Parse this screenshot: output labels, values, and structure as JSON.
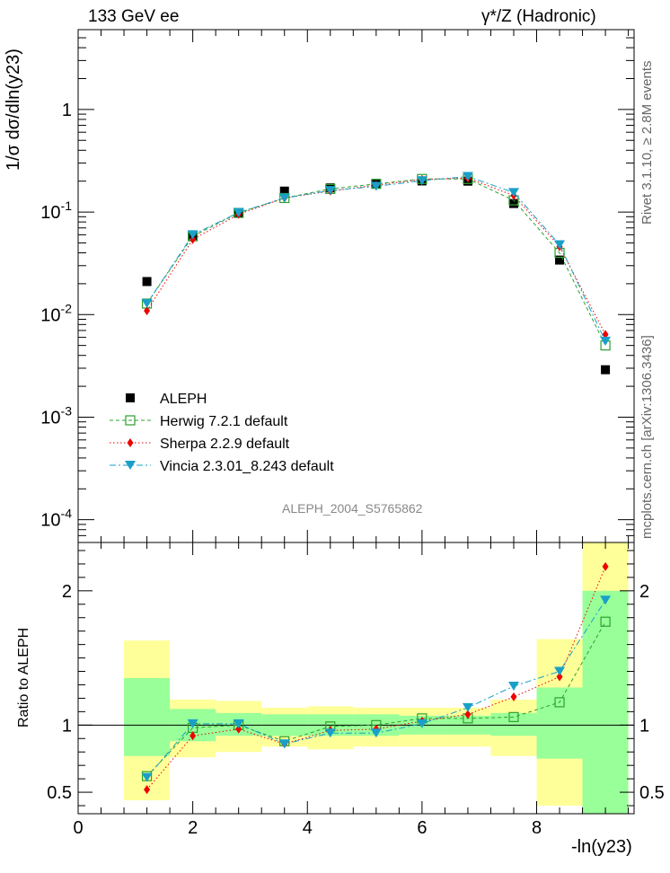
{
  "header": {
    "left": "133 GeV ee",
    "right": "γ*/Z (Hadronic)"
  },
  "side_text": {
    "top": "Rivet 3.1.10, ≥ 2.8M events",
    "bottom": "mcplots.cern.ch [arXiv:1306.3436]"
  },
  "analysis_label": "ALEPH_2004_S5765862",
  "colors": {
    "data": "#000000",
    "herwig": "#2ca02c",
    "sherpa": "#ee0000",
    "vincia": "#1a9fc9",
    "band_outer": "#ffff99",
    "band_inner": "#99ff99"
  },
  "chart_data": [
    {
      "type": "scatter",
      "panel": "main",
      "ylabel": "1/σ  dσ/dln(y23)",
      "yscale": "log",
      "ylim": [
        6e-05,
        6
      ],
      "xlim": [
        0,
        9.7
      ],
      "yticks": [
        {
          "v": 1,
          "label": "1"
        },
        {
          "v": 0.1,
          "label": "10-1"
        },
        {
          "v": 0.01,
          "label": "10-2"
        },
        {
          "v": 0.001,
          "label": "10-3"
        },
        {
          "v": 0.0001,
          "label": "10-4"
        }
      ],
      "bin_edges": [
        0.8,
        1.6,
        2.4,
        3.2,
        4.0,
        4.8,
        5.6,
        6.4,
        7.2,
        8.0,
        8.8,
        9.6
      ],
      "x": [
        1.2,
        2.0,
        2.8,
        3.6,
        4.4,
        5.2,
        6.0,
        6.8,
        7.6,
        8.4,
        9.2
      ],
      "series": [
        {
          "name": "ALEPH",
          "values": [
            0.021,
            0.059,
            0.098,
            0.16,
            0.172,
            0.19,
            0.201,
            0.2,
            0.121,
            0.034,
            0.0029
          ]
        },
        {
          "name": "Herwig 7.2.1 default",
          "values": [
            0.0128,
            0.058,
            0.098,
            0.137,
            0.168,
            0.188,
            0.21,
            0.21,
            0.13,
            0.04,
            0.005
          ]
        },
        {
          "name": "Sherpa 2.2.9 default",
          "values": [
            0.0109,
            0.054,
            0.095,
            0.137,
            0.16,
            0.183,
            0.208,
            0.214,
            0.145,
            0.046,
            0.0064
          ]
        },
        {
          "name": "Vincia 2.3.01_8.243 default",
          "values": [
            0.0128,
            0.06,
            0.099,
            0.137,
            0.162,
            0.178,
            0.202,
            0.222,
            0.155,
            0.048,
            0.0055
          ]
        }
      ]
    },
    {
      "type": "scatter",
      "panel": "ratio",
      "ylabel": "Ratio to ALEPH",
      "xlabel": "-ln(y23)",
      "ylim": [
        0.34,
        2.36
      ],
      "xlim": [
        0,
        9.7
      ],
      "yticks": [
        {
          "v": 0.5,
          "label": "0.5"
        },
        {
          "v": 1,
          "label": "1"
        },
        {
          "v": 2,
          "label": "2"
        }
      ],
      "xticks": [
        {
          "v": 0,
          "label": "0"
        },
        {
          "v": 2,
          "label": "2"
        },
        {
          "v": 4,
          "label": "4"
        },
        {
          "v": 6,
          "label": "6"
        },
        {
          "v": 8,
          "label": "8"
        }
      ],
      "band_outer": [
        [
          0.44,
          1.63
        ],
        [
          0.76,
          1.19
        ],
        [
          0.8,
          1.18
        ],
        [
          0.84,
          1.13
        ],
        [
          0.82,
          1.14
        ],
        [
          0.84,
          1.13
        ],
        [
          0.84,
          1.13
        ],
        [
          0.84,
          1.13
        ],
        [
          0.77,
          1.19
        ],
        [
          0.4,
          1.64
        ],
        [
          0.34,
          2.36
        ]
      ],
      "band_inner": [
        [
          0.77,
          1.35
        ],
        [
          0.88,
          1.12
        ],
        [
          0.92,
          1.09
        ],
        [
          0.92,
          1.08
        ],
        [
          0.92,
          1.08
        ],
        [
          0.92,
          1.08
        ],
        [
          0.93,
          1.07
        ],
        [
          0.93,
          1.07
        ],
        [
          0.92,
          1.09
        ],
        [
          0.75,
          1.28
        ],
        [
          0.34,
          2.0
        ]
      ],
      "x": [
        1.2,
        2.0,
        2.8,
        3.6,
        4.4,
        5.2,
        6.0,
        6.8,
        7.6,
        8.4,
        9.2
      ],
      "series": [
        {
          "name": "Herwig 7.2.1 default",
          "values": [
            0.62,
            0.98,
            1.0,
            0.88,
            0.99,
            1.0,
            1.05,
            1.05,
            1.06,
            1.17,
            1.77
          ]
        },
        {
          "name": "Sherpa 2.2.9 default",
          "values": [
            0.52,
            0.92,
            0.97,
            0.86,
            0.96,
            0.97,
            1.03,
            1.08,
            1.21,
            1.36,
            2.18
          ]
        },
        {
          "name": "Vincia 2.3.01_8.243 default",
          "values": [
            0.61,
            1.01,
            1.01,
            0.86,
            0.94,
            0.94,
            1.01,
            1.13,
            1.29,
            1.4,
            1.93
          ]
        }
      ]
    }
  ]
}
